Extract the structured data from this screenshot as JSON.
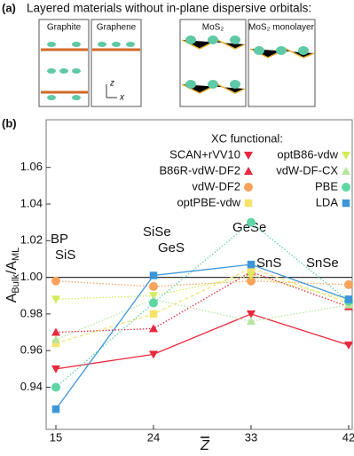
{
  "panel_a": {
    "label": "(a)",
    "title": "Layered materials without in-plane dispersive orbitals:",
    "structures": [
      "Graphite",
      "Graphene",
      "MoS₂",
      "MoS₂ monolayer"
    ],
    "axes": [
      "z",
      "x"
    ]
  },
  "chart_data": {
    "type": "line",
    "panel_label": "(b)",
    "xlabel": "Z",
    "ylabel": {
      "main": "A",
      "sub": "Bulk",
      "slash": "/A",
      "sub2": "ML"
    },
    "legend_title": "XC functional:",
    "x": [
      15,
      24,
      33,
      42
    ],
    "xlim": [
      14.1,
      42.33
    ],
    "xticks": [
      15,
      24,
      33,
      42
    ],
    "ylim": [
      0.917,
      1.086
    ],
    "yticks": [
      0.94,
      0.96,
      0.98,
      {
        "value": 1,
        "label": "1.00"
      },
      1.02,
      1.04,
      1.06
    ],
    "reference_line": 1,
    "annotations": [
      "BP",
      "SiS",
      "SiSe",
      "GeS",
      "GeSe",
      "SnS",
      "SnSe"
    ],
    "series": [
      {
        "name": "SCAN+rVV10",
        "color": "#e8283c",
        "marker": "triangle-down",
        "linestyle": "solid",
        "values": [
          0.95,
          0.958,
          0.98,
          0.963
        ]
      },
      {
        "name": "B86R-vdW-DF2",
        "color": "#e8283c",
        "marker": "triangle-up",
        "linestyle": "dotted",
        "values": [
          0.97,
          0.972,
          1.003,
          0.984
        ]
      },
      {
        "name": "vdW-DF2",
        "color": "#f7a35c",
        "marker": "circle",
        "linestyle": "dotted",
        "values": [
          0.998,
          0.995,
          0.998,
          0.996
        ]
      },
      {
        "name": "optPBE-vdw",
        "color": "#f5e36a",
        "marker": "square",
        "linestyle": "dashed",
        "values": [
          0.964,
          0.98,
          1.005,
          0.986
        ]
      },
      {
        "name": "optB86-vdw",
        "color": "#d4ec5a",
        "marker": "triangle-down",
        "linestyle": "dotted",
        "values": [
          0.988,
          0.99,
          1.001,
          0.988
        ]
      },
      {
        "name": "vdW-DF-CX",
        "color": "#b5e6a0",
        "marker": "triangle-up",
        "linestyle": "dotted",
        "values": [
          0.966,
          0.988,
          0.976,
          0.985
        ]
      },
      {
        "name": "PBE",
        "color": "#5fd6a4",
        "marker": "circle",
        "linestyle": "dotted",
        "values": [
          0.94,
          0.986,
          1.03,
          0.987
        ]
      },
      {
        "name": "LDA",
        "color": "#3d96d9",
        "marker": "square",
        "linestyle": "solid",
        "values": [
          0.928,
          1.001,
          1.007,
          0.988
        ]
      }
    ]
  }
}
